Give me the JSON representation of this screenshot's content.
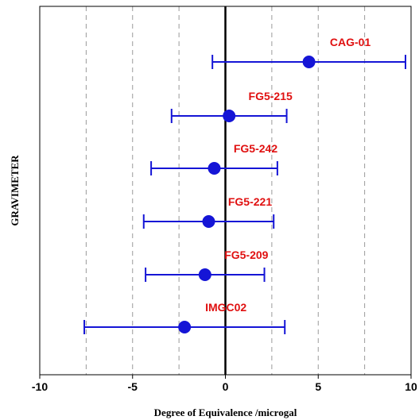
{
  "chart_data": {
    "type": "scatter",
    "title": "",
    "xlabel": "Degree of Equivalence /microgal",
    "ylabel": "GRAVIMETER",
    "xlim": [
      -10,
      10
    ],
    "x_ticks": [
      "-10",
      "-5",
      "0",
      "5",
      "10"
    ],
    "x_tick_values": [
      -10,
      -5,
      0,
      5,
      10
    ],
    "grid_x_values": [
      -7.5,
      -5,
      -2.5,
      2.5,
      5,
      7.5
    ],
    "grid": "vertical dashed",
    "zero_line": true,
    "colors": {
      "marker": "#1515d6",
      "label": "#e01010",
      "grid": "#9a9a9a",
      "axis": "#000000"
    },
    "series": [
      {
        "name": "CAG-01",
        "x": 4.5,
        "err_low": -0.7,
        "err_high": 9.7
      },
      {
        "name": "FG5-215",
        "x": 0.2,
        "err_low": -2.9,
        "err_high": 3.3
      },
      {
        "name": "FG5-242",
        "x": -0.6,
        "err_low": -4.0,
        "err_high": 2.8
      },
      {
        "name": "FG5-221",
        "x": -0.9,
        "err_low": -4.4,
        "err_high": 2.6
      },
      {
        "name": "FG5-209",
        "x": -1.1,
        "err_low": -4.3,
        "err_high": 2.1
      },
      {
        "name": "IMGC02",
        "x": -2.2,
        "err_low": -7.6,
        "err_high": 3.2
      }
    ]
  }
}
